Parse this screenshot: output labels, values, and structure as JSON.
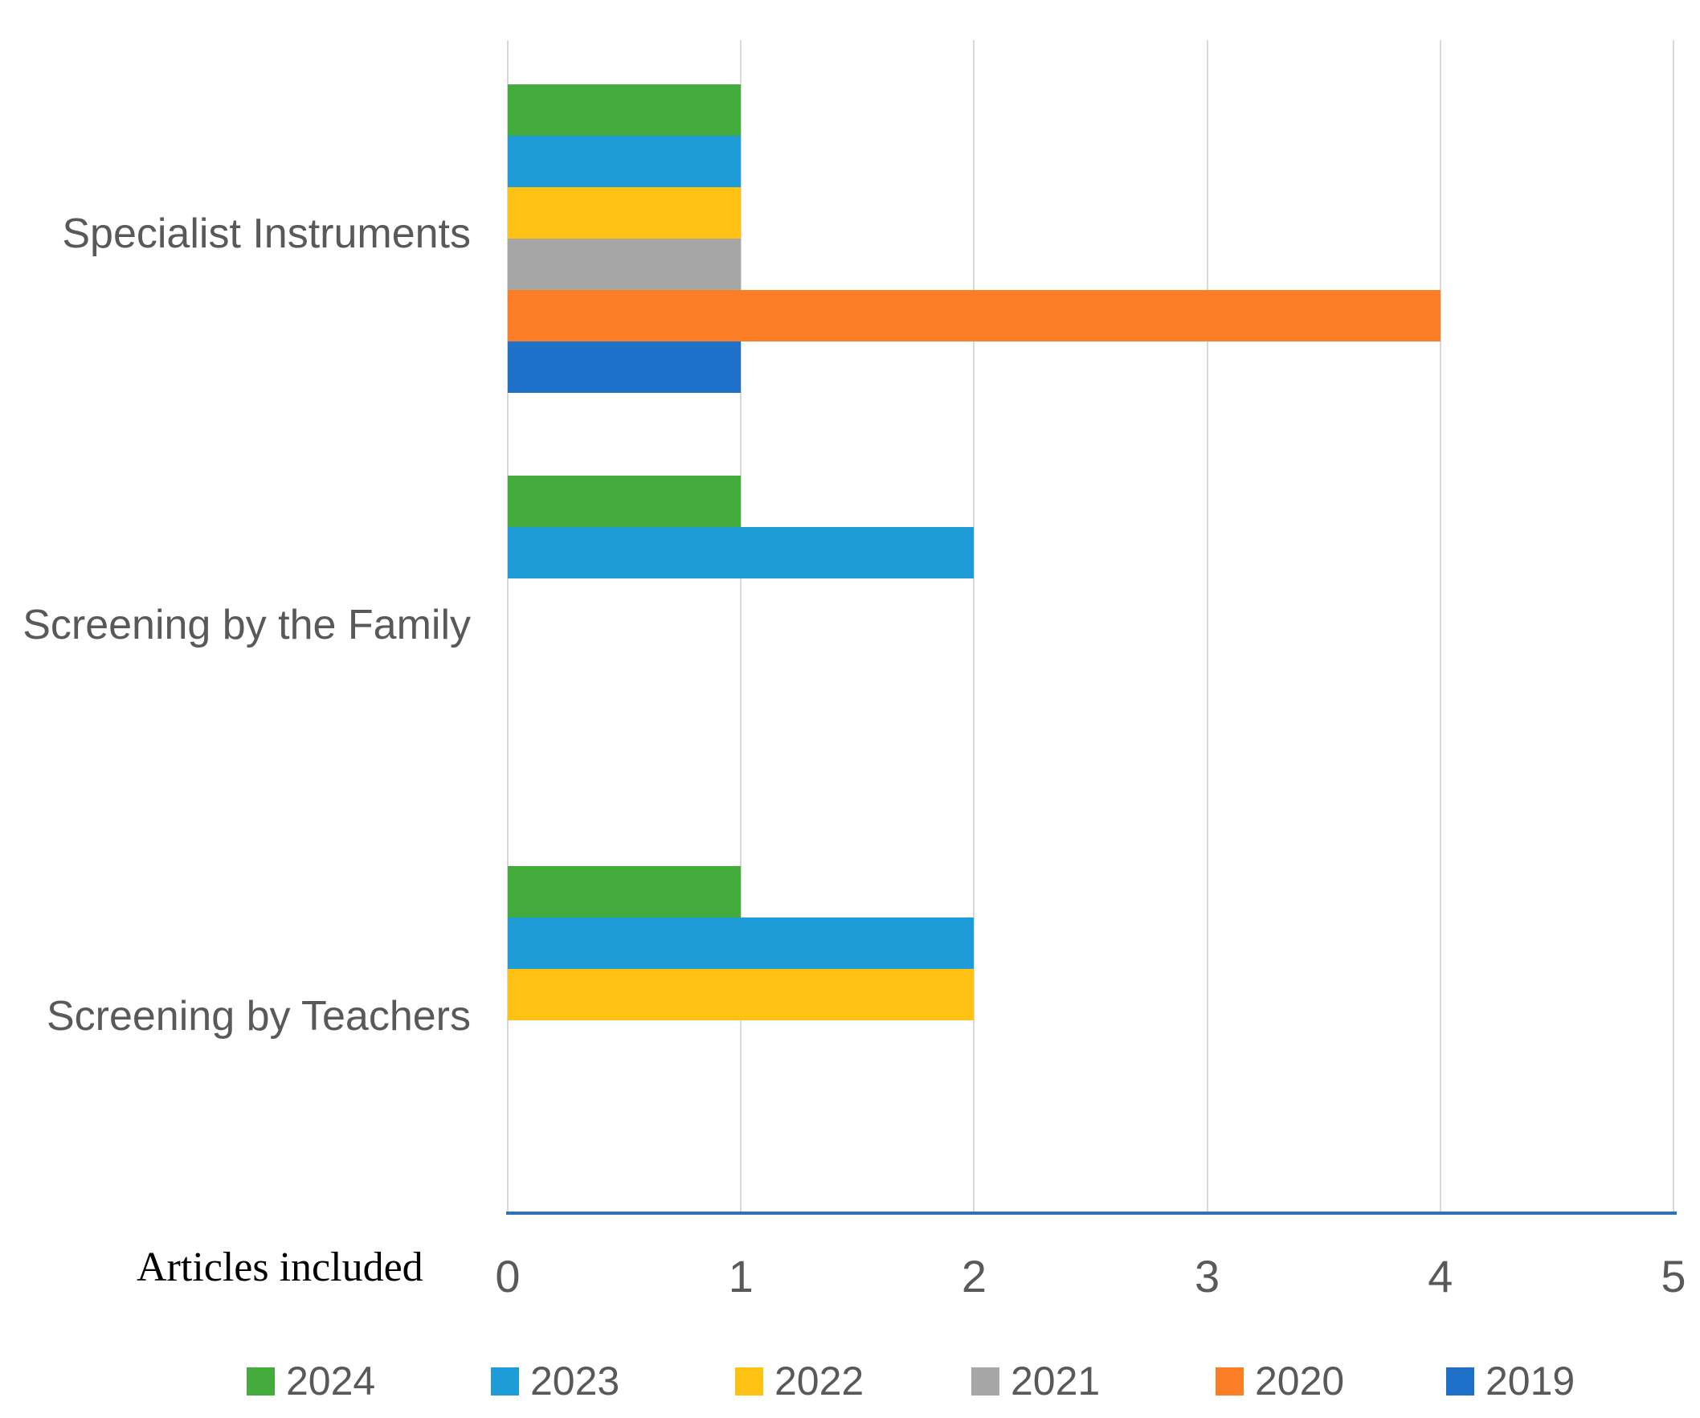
{
  "chart_data": {
    "type": "bar",
    "orientation": "horizontal",
    "title": "",
    "xlabel": "Articles included",
    "ylabel": "",
    "categories": [
      "Specialist Instruments",
      "Screening by the Family",
      "Screening by Teachers"
    ],
    "series": [
      {
        "name": "2024",
        "color": "#44AC3C",
        "values": [
          1,
          1,
          1
        ]
      },
      {
        "name": "2023",
        "color": "#1E9CD7",
        "values": [
          1,
          2,
          2
        ]
      },
      {
        "name": "2022",
        "color": "#FFC112",
        "values": [
          1,
          0,
          2
        ]
      },
      {
        "name": "2021",
        "color": "#A6A6A6",
        "values": [
          1,
          0,
          0
        ]
      },
      {
        "name": "2020",
        "color": "#FB7D26",
        "values": [
          4,
          0,
          0
        ]
      },
      {
        "name": "2019",
        "color": "#1F70C8",
        "values": [
          1,
          0,
          0
        ]
      }
    ],
    "x_ticks": [
      0,
      1,
      2,
      3,
      4,
      5
    ],
    "xlim": [
      0,
      5
    ],
    "grid": true,
    "legend_position": "bottom",
    "legend_entries": [
      "2024",
      "2023",
      "2022",
      "2021",
      "2020",
      "2019"
    ],
    "colors": {
      "axis_line": "#2E74B5",
      "gridline": "#d9d9d9",
      "tick_text": "#595959",
      "category_text": "#595959",
      "legend_text": "#595959",
      "xlabel_text": "#000000"
    }
  }
}
